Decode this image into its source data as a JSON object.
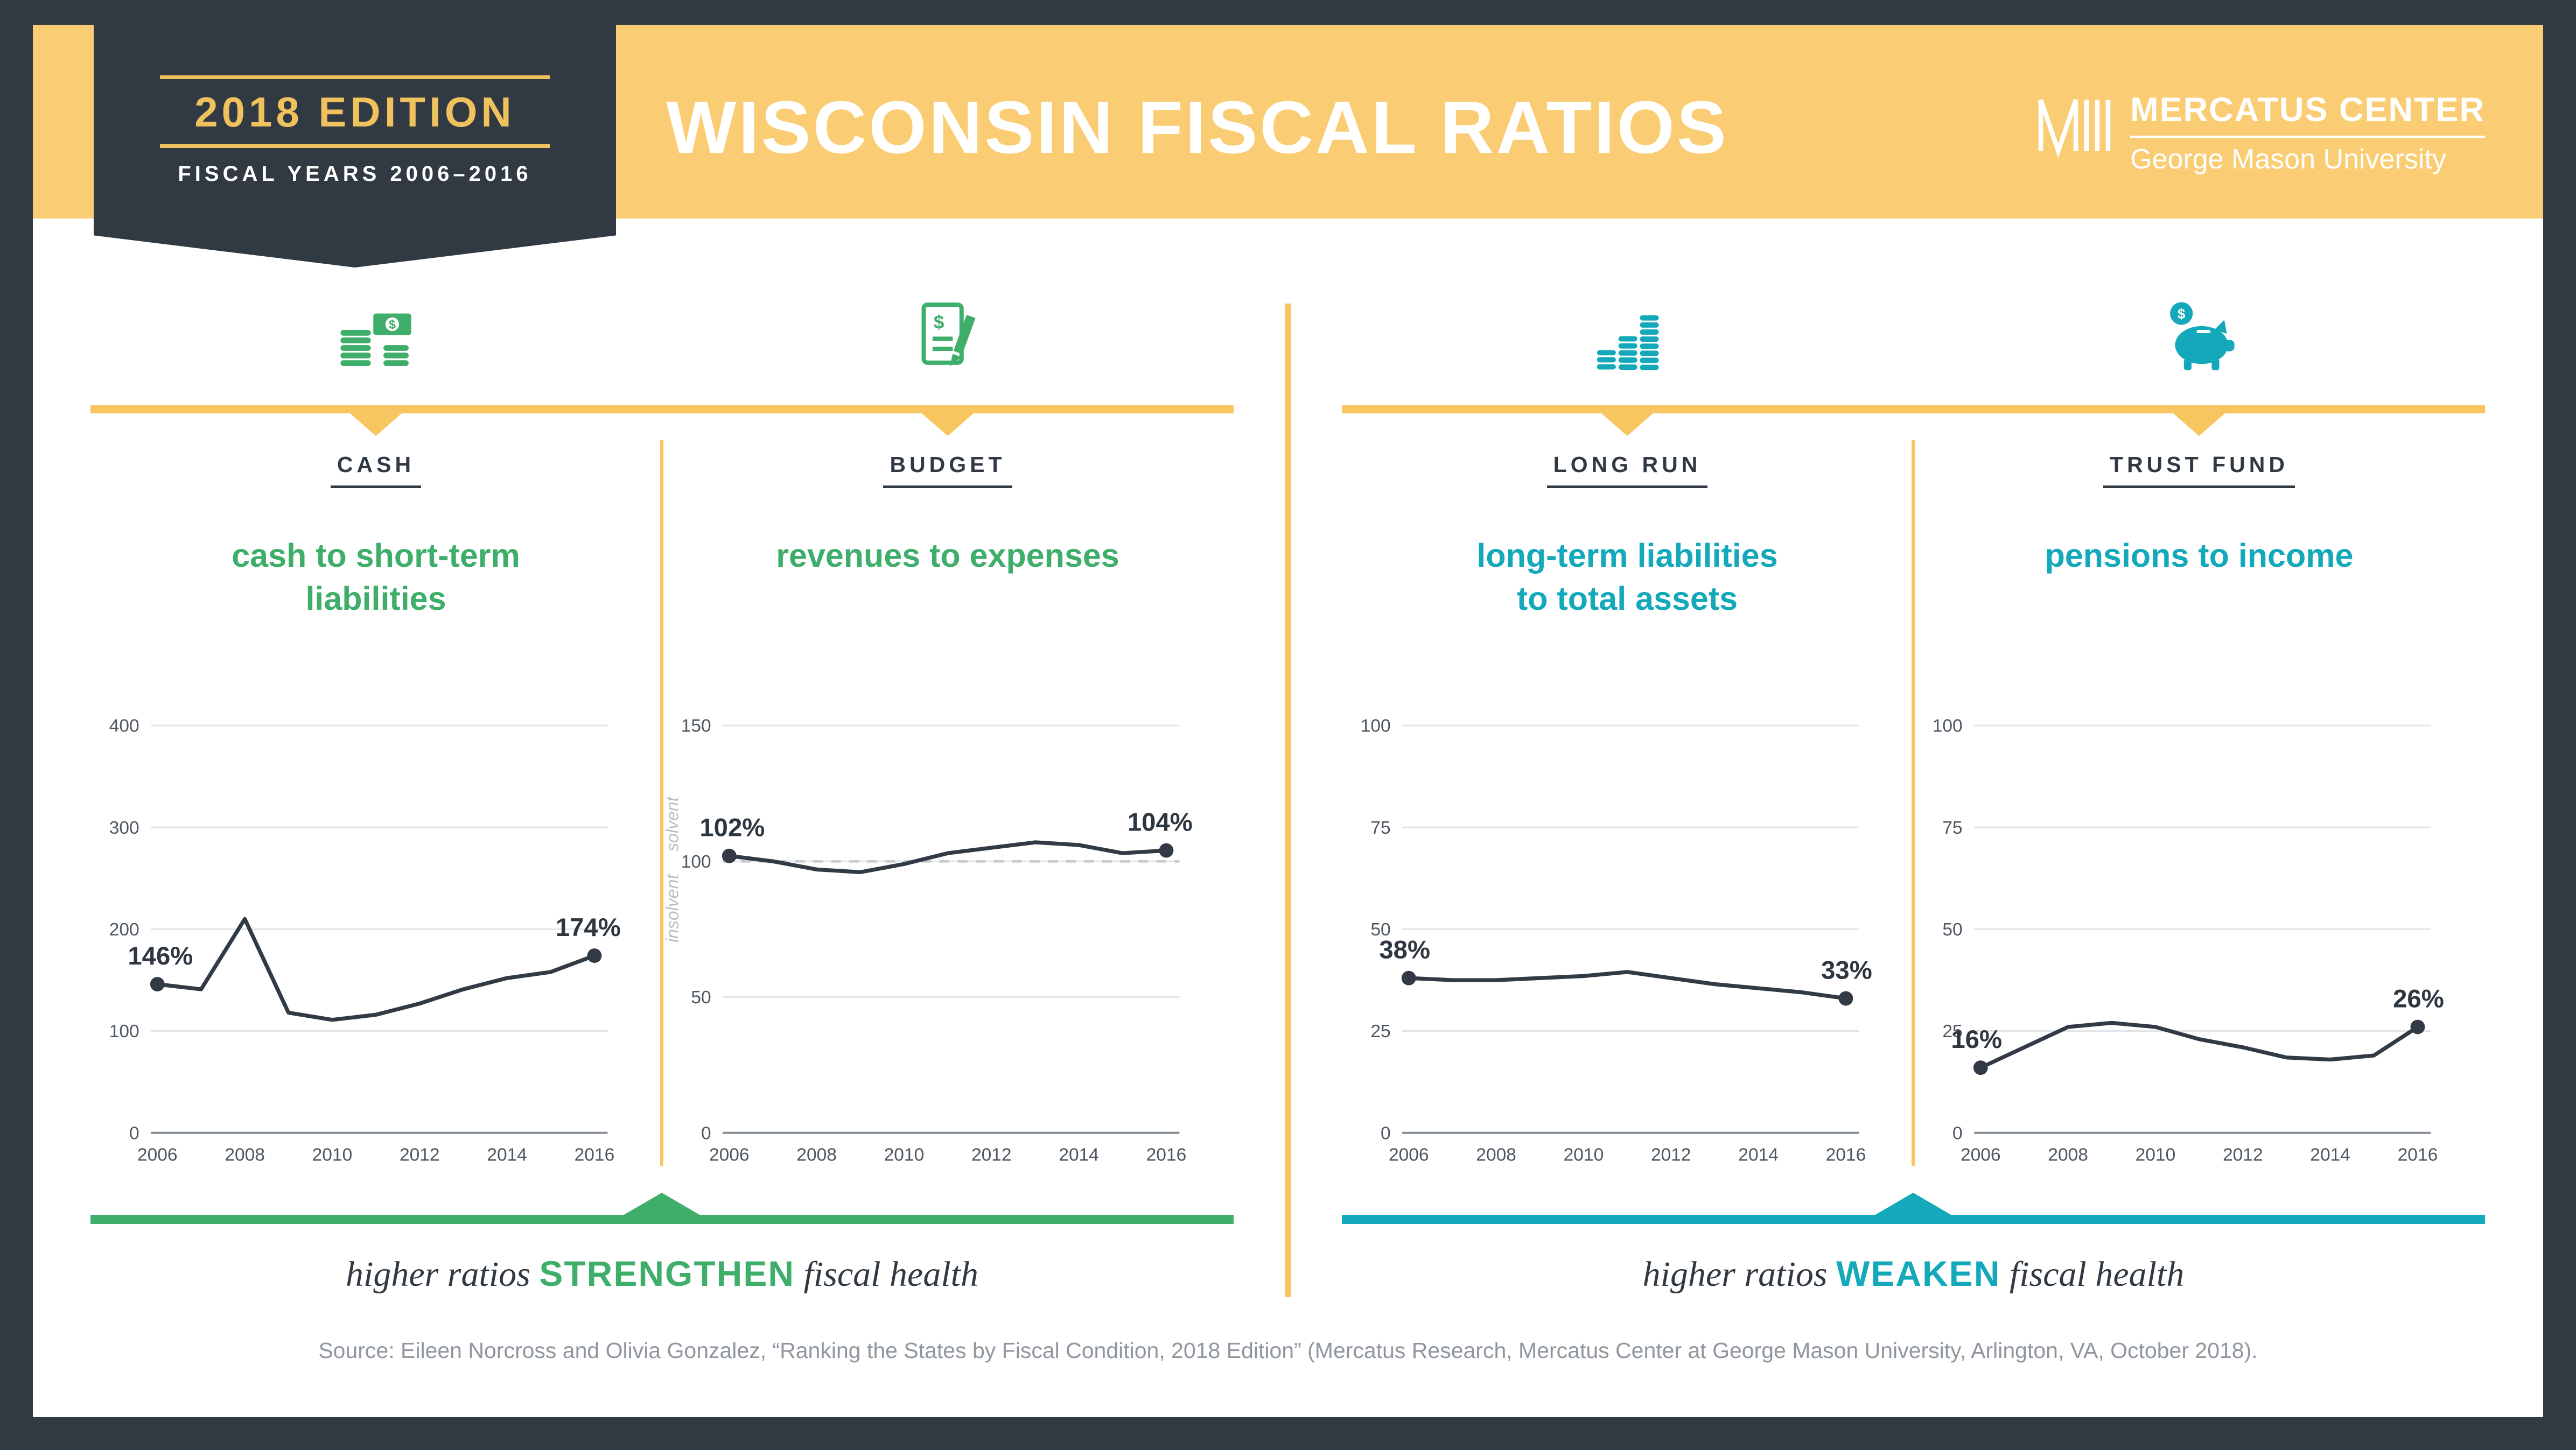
{
  "badge": {
    "edition": "2018 EDITION",
    "fiscal_years": "FISCAL YEARS 2006–2016"
  },
  "header": {
    "title": "WISCONSIN FISCAL RATIOS",
    "logo": {
      "line1": "MERCATUS CENTER",
      "line2": "George Mason University"
    }
  },
  "colors": {
    "navy": "#313943",
    "gold_band": "#FACD74",
    "gold_accent": "#F8C661",
    "green": "#3FAE6B",
    "teal": "#13A8BA",
    "line": "#323A45",
    "grid": "#E2E5E8",
    "source_gray": "#8F969E"
  },
  "panels": [
    {
      "kicker": "CASH",
      "title": "cash to short-term\nliabilities",
      "icon": "coins-and-banknote-icon",
      "accent": "green"
    },
    {
      "kicker": "BUDGET",
      "title": "revenues to expenses",
      "icon": "budget-document-icon",
      "accent": "green"
    },
    {
      "kicker": "LONG RUN",
      "title": "long-term liabilities\nto total assets",
      "icon": "coin-stacks-chart-icon",
      "accent": "teal"
    },
    {
      "kicker": "TRUST FUND",
      "title": "pensions to income",
      "icon": "piggy-bank-icon",
      "accent": "teal"
    }
  ],
  "chart_data": [
    {
      "type": "line",
      "title": "cash to short-term liabilities",
      "x": [
        2006,
        2007,
        2008,
        2009,
        2010,
        2011,
        2012,
        2013,
        2014,
        2015,
        2016
      ],
      "values": [
        146,
        141,
        210,
        118,
        111,
        116,
        127,
        141,
        152,
        158,
        174
      ],
      "ylim": [
        0,
        400
      ],
      "yticks": [
        0,
        100,
        200,
        300,
        400
      ],
      "xticks": [
        2006,
        2008,
        2010,
        2012,
        2014,
        2016
      ],
      "start_label": "146%",
      "end_label": "174%",
      "grid": true,
      "legend": false
    },
    {
      "type": "line",
      "title": "revenues to expenses",
      "x": [
        2006,
        2007,
        2008,
        2009,
        2010,
        2011,
        2012,
        2013,
        2014,
        2015,
        2016
      ],
      "values": [
        102,
        100,
        97,
        96,
        99,
        103,
        105,
        107,
        106,
        103,
        104
      ],
      "ylim": [
        0,
        150
      ],
      "yticks": [
        0,
        50,
        100,
        150
      ],
      "xticks": [
        2006,
        2008,
        2010,
        2012,
        2014,
        2016
      ],
      "reference_line": 100,
      "zone_labels": [
        "solvent",
        "insolvent"
      ],
      "start_label": "102%",
      "end_label": "104%",
      "grid": true,
      "legend": false
    },
    {
      "type": "line",
      "title": "long-term liabilities to total assets",
      "x": [
        2006,
        2007,
        2008,
        2009,
        2010,
        2011,
        2012,
        2013,
        2014,
        2015,
        2016
      ],
      "values": [
        38,
        37.5,
        37.5,
        38,
        38.5,
        39.5,
        38,
        36.5,
        35.5,
        34.5,
        33
      ],
      "ylim": [
        0,
        100
      ],
      "yticks": [
        0,
        25,
        50,
        75,
        100
      ],
      "xticks": [
        2006,
        2008,
        2010,
        2012,
        2014,
        2016
      ],
      "start_label": "38%",
      "end_label": "33%",
      "grid": true,
      "legend": false
    },
    {
      "type": "line",
      "title": "pensions to income",
      "x": [
        2006,
        2007,
        2008,
        2009,
        2010,
        2011,
        2012,
        2013,
        2014,
        2015,
        2016
      ],
      "values": [
        16,
        21,
        26,
        27,
        26,
        23,
        21,
        18.5,
        18,
        19,
        26
      ],
      "ylim": [
        0,
        100
      ],
      "yticks": [
        0,
        25,
        50,
        75,
        100
      ],
      "xticks": [
        2006,
        2008,
        2010,
        2012,
        2014,
        2016
      ],
      "start_label": "16%",
      "end_label": "26%",
      "grid": true,
      "legend": false
    }
  ],
  "footer": {
    "strengthen": {
      "pre": "higher ratios ",
      "emphasis": "STRENGTHEN",
      "post": " fiscal health"
    },
    "weaken": {
      "pre": "higher ratios ",
      "emphasis": "WEAKEN",
      "post": " fiscal health"
    },
    "source": "Source: Eileen Norcross and Olivia Gonzalez, “Ranking the States by Fiscal Condition, 2018 Edition” (Mercatus Research, Mercatus Center at George Mason University, Arlington, VA, October 2018)."
  }
}
